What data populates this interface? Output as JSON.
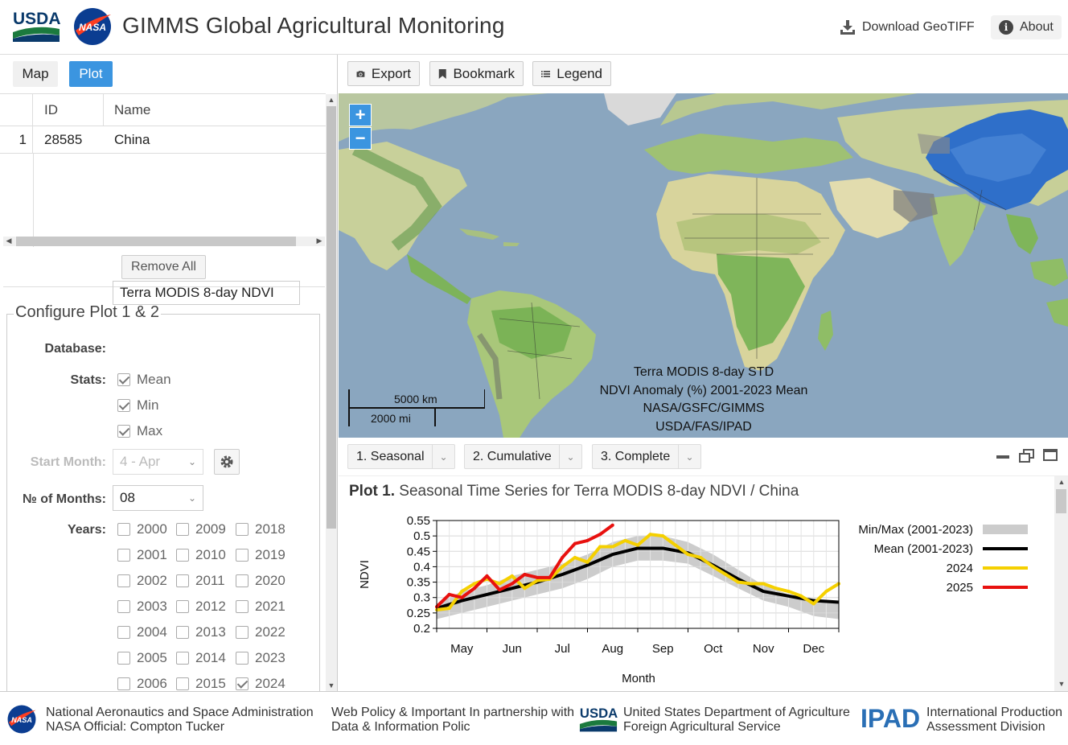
{
  "header": {
    "usda_logo_text": "USDA",
    "nasa_logo_text": "NASA",
    "title": "GIMMS Global Agricultural Monitoring",
    "download_label": "Download GeoTIFF",
    "about_label": "About"
  },
  "left": {
    "tabs": [
      {
        "label": "Map"
      },
      {
        "label": "Plot",
        "active": true
      }
    ],
    "table": {
      "columns": [
        "ID",
        "Name"
      ],
      "rows": [
        {
          "index": "1",
          "id": "28585",
          "name": "China"
        }
      ]
    },
    "remove_all_label": "Remove All",
    "config": {
      "legend": "Configure Plot 1 & 2",
      "database_label": "Database:",
      "database_value": "Terra MODIS 8-day NDVI",
      "stats_label": "Stats:",
      "stats": [
        {
          "label": "Mean",
          "checked": true
        },
        {
          "label": "Min",
          "checked": true
        },
        {
          "label": "Max",
          "checked": true
        }
      ],
      "start_month_label": "Start Month:",
      "start_month_value": "4 - Apr",
      "months_label": "№ of Months:",
      "months_value": "08",
      "years_label": "Years:",
      "years": [
        [
          "2000",
          "2009",
          "2018"
        ],
        [
          "2001",
          "2010",
          "2019"
        ],
        [
          "2002",
          "2011",
          "2020"
        ],
        [
          "2003",
          "2012",
          "2021"
        ],
        [
          "2004",
          "2013",
          "2022"
        ],
        [
          "2005",
          "2014",
          "2023"
        ],
        [
          "2006",
          "2015",
          "2024"
        ]
      ],
      "checked_years": [
        "2024"
      ]
    }
  },
  "toolbar": {
    "export_label": "Export",
    "bookmark_label": "Bookmark",
    "legend_label": "Legend"
  },
  "map": {
    "zoom_in": "+",
    "zoom_out": "−",
    "caption": [
      "Terra MODIS 8-day STD",
      "NDVI Anomaly (%) 2001-2023 Mean",
      "NASA/GSFC/GIMMS",
      "USDA/FAS/IPAD"
    ],
    "scale_km": "5000 km",
    "scale_mi": "2000 mi",
    "colors": {
      "ocean": "#8aa6bf",
      "land": "#d9d9a6",
      "highlight": "#2f6fc9"
    }
  },
  "plot_tabs": [
    {
      "label": "1. Seasonal"
    },
    {
      "label": "2. Cumulative"
    },
    {
      "label": "3. Complete"
    }
  ],
  "plot": {
    "title_prefix": "Plot 1.",
    "title_rest": "Seasonal Time Series for Terra MODIS 8-day NDVI / China"
  },
  "chart_data": {
    "type": "line",
    "title": "",
    "xlabel": "Month",
    "ylabel": "NDVI",
    "ylim": [
      0.2,
      0.55
    ],
    "yticks": [
      0.2,
      0.25,
      0.3,
      0.35,
      0.4,
      0.45,
      0.5,
      0.55
    ],
    "ytick_labels": [
      "0.2",
      "0.25",
      "0.3",
      "0.35",
      "0.4",
      "0.45",
      "0.5",
      "0.55"
    ],
    "xlim": [
      4,
      12
    ],
    "xticks": [
      4.5,
      5.5,
      6.5,
      7.5,
      8.5,
      9.5,
      10.5,
      11.5
    ],
    "xtick_labels": [
      "May",
      "Jun",
      "Jul",
      "Aug",
      "Sep",
      "Oct",
      "Nov",
      "Dec"
    ],
    "grid": true,
    "legend_position": "right",
    "band": {
      "name": "Min/Max (2001-2023)",
      "color": "#cccccc",
      "x": [
        4.0,
        4.5,
        5.0,
        5.5,
        6.0,
        6.5,
        7.0,
        7.5,
        8.0,
        8.5,
        9.0,
        9.5,
        10.0,
        10.5,
        11.0,
        11.5,
        12.0
      ],
      "min": [
        0.23,
        0.25,
        0.27,
        0.29,
        0.31,
        0.33,
        0.36,
        0.4,
        0.42,
        0.42,
        0.41,
        0.37,
        0.33,
        0.29,
        0.27,
        0.24,
        0.23
      ],
      "max": [
        0.28,
        0.32,
        0.34,
        0.37,
        0.39,
        0.41,
        0.44,
        0.48,
        0.5,
        0.5,
        0.48,
        0.44,
        0.39,
        0.34,
        0.31,
        0.29,
        0.28
      ]
    },
    "series": [
      {
        "name": "Mean (2001-2023)",
        "color": "#000000",
        "width": 4,
        "x": [
          4.0,
          4.5,
          5.0,
          5.5,
          6.0,
          6.5,
          7.0,
          7.5,
          8.0,
          8.5,
          9.0,
          9.5,
          10.0,
          10.5,
          11.0,
          11.5,
          12.0
        ],
        "y": [
          0.265,
          0.29,
          0.31,
          0.33,
          0.35,
          0.375,
          0.405,
          0.44,
          0.46,
          0.46,
          0.445,
          0.405,
          0.36,
          0.32,
          0.305,
          0.29,
          0.285
        ]
      },
      {
        "name": "2024",
        "color": "#f5d000",
        "width": 4,
        "x": [
          4.0,
          4.25,
          4.5,
          4.75,
          5.0,
          5.25,
          5.5,
          5.75,
          6.0,
          6.25,
          6.5,
          6.75,
          7.0,
          7.25,
          7.5,
          7.75,
          8.0,
          8.25,
          8.5,
          8.75,
          9.0,
          9.25,
          9.5,
          9.75,
          10.0,
          10.25,
          10.5,
          10.75,
          11.0,
          11.25,
          11.5,
          11.75,
          12.0
        ],
        "y": [
          0.26,
          0.265,
          0.32,
          0.345,
          0.36,
          0.345,
          0.37,
          0.33,
          0.355,
          0.36,
          0.4,
          0.43,
          0.415,
          0.465,
          0.465,
          0.485,
          0.47,
          0.505,
          0.5,
          0.47,
          0.44,
          0.43,
          0.4,
          0.375,
          0.35,
          0.345,
          0.345,
          0.33,
          0.32,
          0.305,
          0.28,
          0.32,
          0.345
        ]
      },
      {
        "name": "2025",
        "color": "#e8110f",
        "width": 4,
        "x": [
          4.0,
          4.25,
          4.5,
          4.75,
          5.0,
          5.25,
          5.5,
          5.75,
          6.0,
          6.25,
          6.5,
          6.75,
          7.0,
          7.25,
          7.5
        ],
        "y": [
          0.27,
          0.31,
          0.3,
          0.33,
          0.37,
          0.325,
          0.345,
          0.375,
          0.365,
          0.365,
          0.43,
          0.475,
          0.485,
          0.505,
          0.535
        ]
      }
    ]
  },
  "footer": {
    "nasa_line1": "National Aeronautics and Space Administration",
    "nasa_line2": "NASA Official: Compton Tucker",
    "web_line1": "Web Policy & Important In partnership with",
    "web_line2": "Data & Information Polic",
    "usda_line1": "United States Department of Agriculture",
    "usda_line2": "Foreign Agricultural Service",
    "ipad_logo": "IPAD",
    "ipad_line1": "International Production",
    "ipad_line2": "Assessment Division"
  }
}
